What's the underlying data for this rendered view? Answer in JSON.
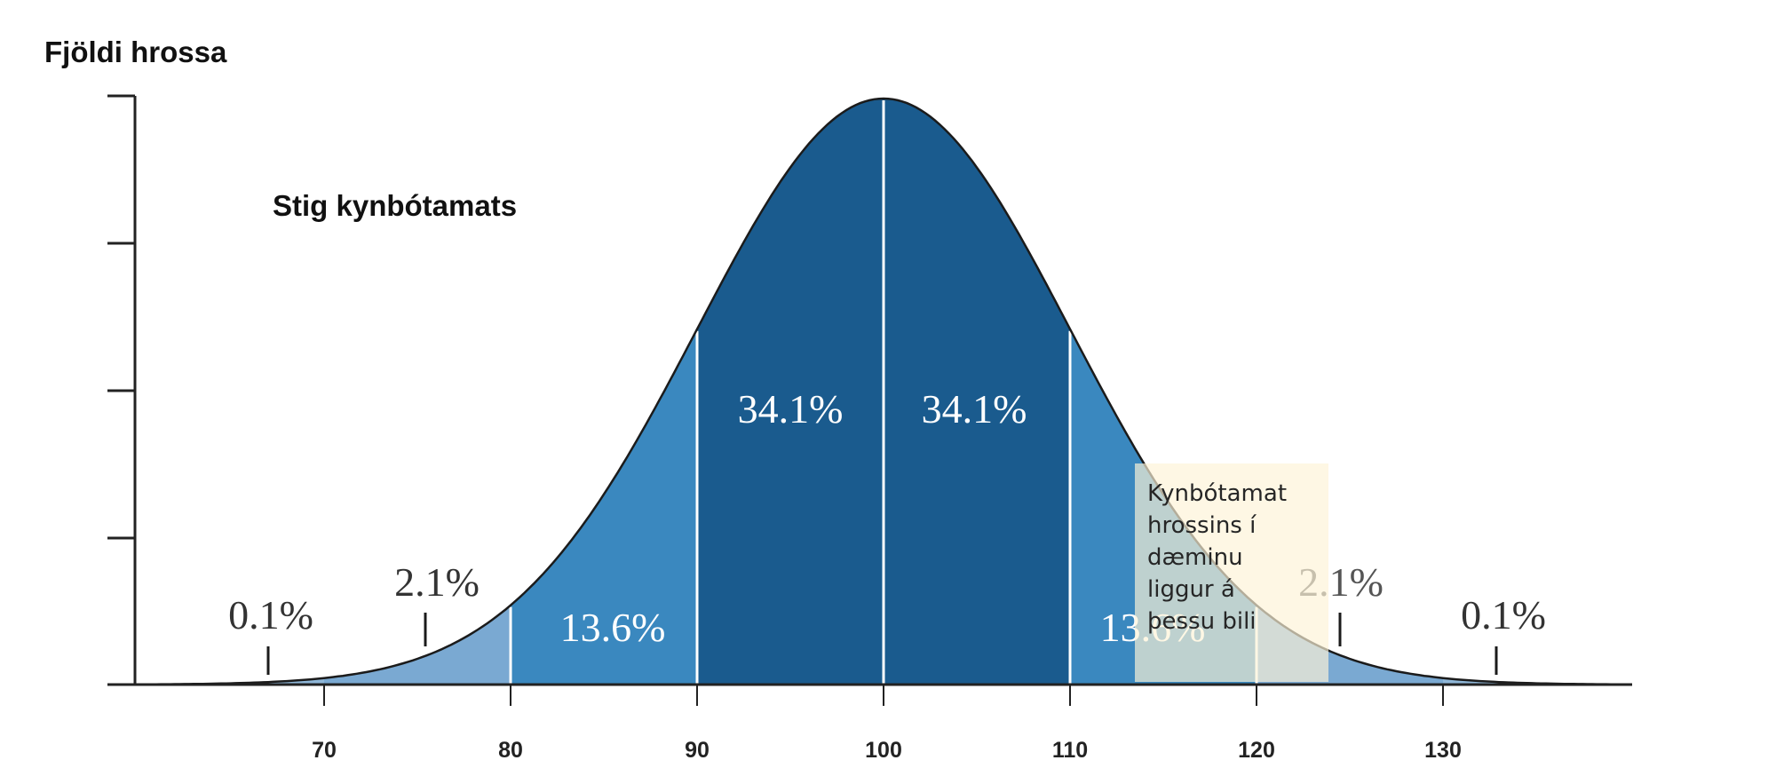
{
  "chart_data": {
    "type": "area",
    "ylabel": "Fjöldi hrossa",
    "xlabel": "Stig kynbótamats",
    "x_ticks": [
      70,
      80,
      90,
      100,
      110,
      120,
      130
    ],
    "xlim": [
      60,
      140
    ],
    "mean": 100,
    "sd": 10,
    "y_grid": false,
    "regions": [
      {
        "from": 60,
        "to": 70,
        "percent": "0.1%",
        "color": "#8fb7d8"
      },
      {
        "from": 70,
        "to": 80,
        "percent": "2.1%",
        "color": "#7aa9d2"
      },
      {
        "from": 80,
        "to": 90,
        "percent": "13.6%",
        "color": "#3a88bf"
      },
      {
        "from": 90,
        "to": 100,
        "percent": "34.1%",
        "color": "#1a5b8e"
      },
      {
        "from": 100,
        "to": 110,
        "percent": "34.1%",
        "color": "#1a5b8e"
      },
      {
        "from": 110,
        "to": 120,
        "percent": "13.6%",
        "color": "#3a88bf"
      },
      {
        "from": 120,
        "to": 130,
        "percent": "2.1%",
        "color": "#7aa9d2"
      },
      {
        "from": 130,
        "to": 140,
        "percent": "0.1%",
        "color": "#8fb7d8"
      }
    ],
    "annotation": {
      "lines": [
        "Kynbótamat",
        "hrossins í",
        "dæminu",
        "liggur á",
        "þessu bili"
      ],
      "background": "#fdf3d7"
    }
  }
}
